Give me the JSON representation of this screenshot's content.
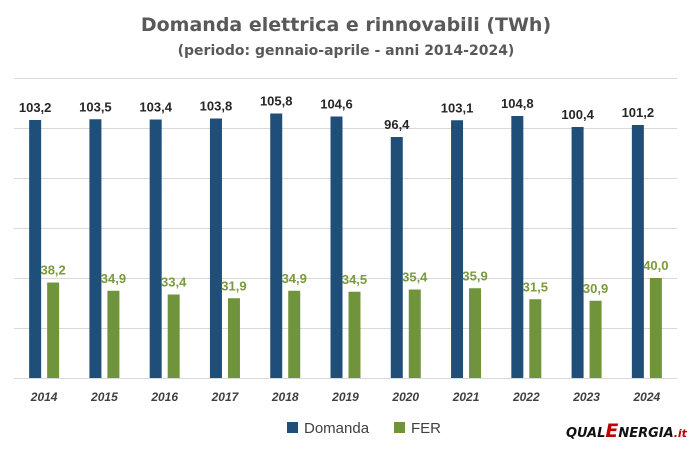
{
  "chart_data": {
    "type": "bar",
    "title": "Domanda elettrica e rinnovabili (TWh)",
    "subtitle": "(periodo: gennaio-aprile - anni 2014-2024)",
    "categories": [
      "2014",
      "2015",
      "2016",
      "2017",
      "2018",
      "2019",
      "2020",
      "2021",
      "2022",
      "2023",
      "2024"
    ],
    "series": [
      {
        "name": "Domanda",
        "color": "#1f4e79",
        "label_color": "#262626",
        "values": [
          103.2,
          103.5,
          103.4,
          103.8,
          105.8,
          104.6,
          96.4,
          103.1,
          104.8,
          100.4,
          101.2
        ],
        "labels": [
          "103,2",
          "103,5",
          "103,4",
          "103,8",
          "105,8",
          "104,6",
          "96,4",
          "103,1",
          "104,8",
          "100,4",
          "101,2"
        ]
      },
      {
        "name": "FER",
        "color": "#70943c",
        "label_color": "#7a9a3c",
        "values": [
          38.2,
          34.9,
          33.4,
          31.9,
          34.9,
          34.5,
          35.4,
          35.9,
          31.5,
          30.9,
          40.0
        ],
        "labels": [
          "38,2",
          "34,9",
          "33,4",
          "31,9",
          "34,9",
          "34,5",
          "35,4",
          "35,9",
          "31,5",
          "30,9",
          "40,0"
        ]
      }
    ],
    "xlabel": "",
    "ylabel": "",
    "ylim": [
      0,
      120
    ],
    "y_ticks": [
      0,
      20,
      40,
      60,
      80,
      100,
      120
    ],
    "y_tick_labels_visible": false,
    "grid": true,
    "legend": "bottom-center"
  },
  "colors": {
    "gridline": "#d9d9d9",
    "background": "#ffffff"
  },
  "logo": {
    "part1": "QUAL",
    "part2": "E",
    "part3": "NERGIA",
    "part4": ".it"
  }
}
